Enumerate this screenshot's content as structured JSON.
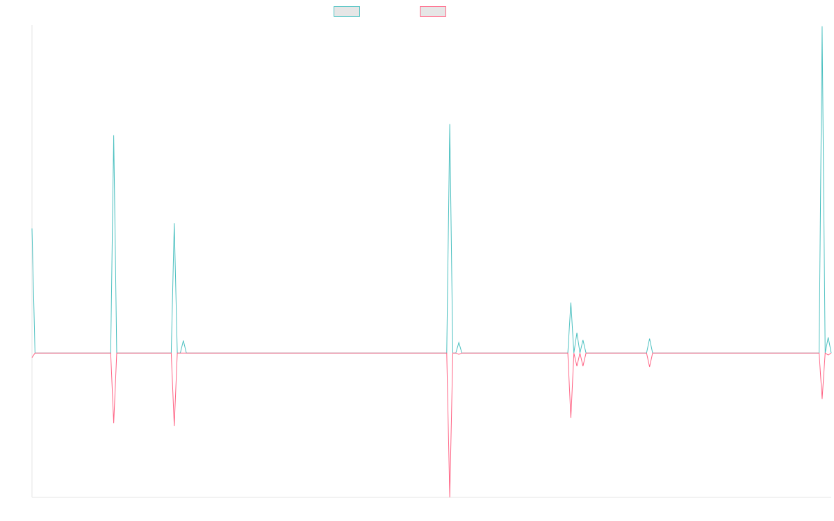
{
  "chart_data": {
    "type": "line",
    "title": "",
    "xlabel": "",
    "ylabel": "",
    "legend": "top-center",
    "grid": false,
    "x_count": 264,
    "ylim": [
      -220,
      500
    ],
    "series": [
      {
        "name": "",
        "color": "#4bc0c0",
        "points": [
          [
            0,
            190
          ],
          [
            1,
            0
          ],
          [
            26,
            0
          ],
          [
            27,
            332
          ],
          [
            28,
            0
          ],
          [
            46,
            0
          ],
          [
            47,
            198
          ],
          [
            48,
            0
          ],
          [
            49,
            0
          ],
          [
            50,
            19
          ],
          [
            51,
            0
          ],
          [
            137,
            0
          ],
          [
            138,
            349
          ],
          [
            139,
            0
          ],
          [
            140,
            0
          ],
          [
            141,
            16
          ],
          [
            142,
            0
          ],
          [
            177,
            0
          ],
          [
            178,
            77
          ],
          [
            179,
            0
          ],
          [
            180,
            31
          ],
          [
            181,
            0
          ],
          [
            182,
            20
          ],
          [
            183,
            0
          ],
          [
            203,
            0
          ],
          [
            204,
            22
          ],
          [
            205,
            0
          ],
          [
            260,
            0
          ],
          [
            261,
            498
          ],
          [
            262,
            0
          ],
          [
            263,
            24
          ],
          [
            264,
            0
          ]
        ]
      },
      {
        "name": "",
        "color": "#ff6384",
        "points": [
          [
            0,
            -7
          ],
          [
            1,
            0
          ],
          [
            26,
            0
          ],
          [
            27,
            -107
          ],
          [
            28,
            0
          ],
          [
            46,
            0
          ],
          [
            47,
            -111
          ],
          [
            48,
            0
          ],
          [
            137,
            0
          ],
          [
            138,
            -220
          ],
          [
            139,
            0
          ],
          [
            140,
            0
          ],
          [
            141,
            -2
          ],
          [
            142,
            0
          ],
          [
            177,
            0
          ],
          [
            178,
            -99
          ],
          [
            179,
            0
          ],
          [
            180,
            -20
          ],
          [
            181,
            0
          ],
          [
            182,
            -20
          ],
          [
            183,
            0
          ],
          [
            203,
            0
          ],
          [
            204,
            -21
          ],
          [
            205,
            0
          ],
          [
            260,
            0
          ],
          [
            261,
            -70
          ],
          [
            262,
            0
          ],
          [
            263,
            -3
          ],
          [
            264,
            0
          ]
        ]
      }
    ]
  }
}
